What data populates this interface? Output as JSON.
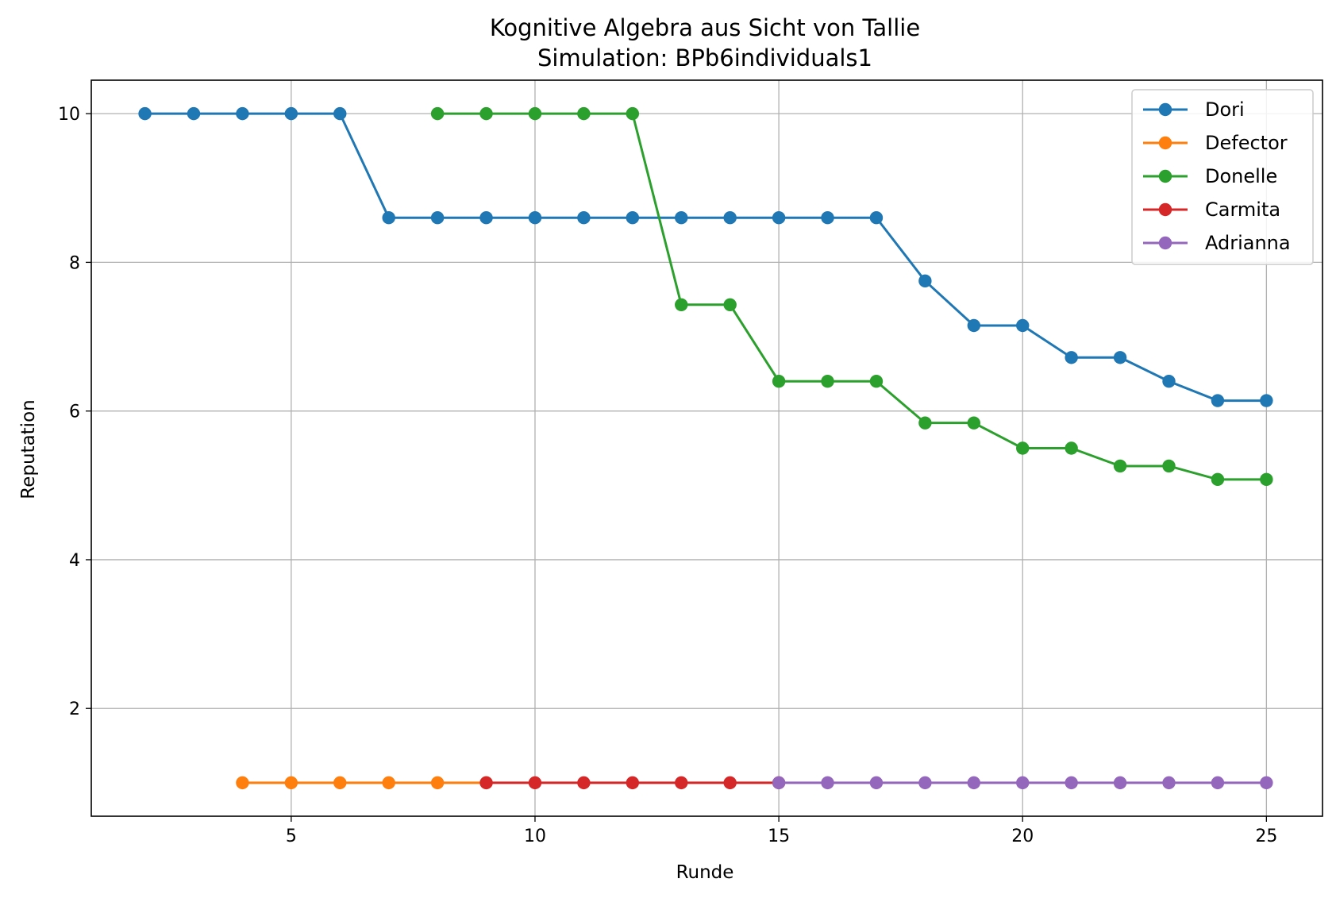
{
  "chart_data": {
    "type": "line",
    "title": "Kognitive Algebra aus Sicht von Tallie",
    "subtitle": "Simulation: BPb6individuals1",
    "xlabel": "Runde",
    "ylabel": "Reputation",
    "xlim": [
      0.9,
      26.15
    ],
    "ylim": [
      0.55,
      10.45
    ],
    "xticks": [
      5,
      10,
      15,
      20,
      25
    ],
    "yticks": [
      2,
      4,
      6,
      8,
      10
    ],
    "grid": true,
    "legend_position": "top-right",
    "series": [
      {
        "name": "Dori",
        "color": "#1f77b4",
        "x": [
          2,
          3,
          4,
          5,
          6,
          7,
          8,
          9,
          10,
          11,
          12,
          13,
          14,
          15,
          16,
          17,
          18,
          19,
          20,
          21,
          22,
          23,
          24,
          25
        ],
        "y": [
          10,
          10,
          10,
          10,
          10,
          8.6,
          8.6,
          8.6,
          8.6,
          8.6,
          8.6,
          8.6,
          8.6,
          8.6,
          8.6,
          8.6,
          7.75,
          7.15,
          7.15,
          6.72,
          6.72,
          6.4,
          6.14,
          6.14
        ]
      },
      {
        "name": "Defector",
        "color": "#ff7f0e",
        "x": [
          4,
          5,
          6,
          7,
          8,
          9
        ],
        "y": [
          1,
          1,
          1,
          1,
          1,
          1
        ]
      },
      {
        "name": "Donelle",
        "color": "#2ca02c",
        "x": [
          8,
          9,
          10,
          11,
          12,
          13,
          14,
          15,
          16,
          17,
          18,
          19,
          20,
          21,
          22,
          23,
          24,
          25
        ],
        "y": [
          10,
          10,
          10,
          10,
          10,
          7.43,
          7.43,
          6.4,
          6.4,
          6.4,
          5.84,
          5.84,
          5.5,
          5.5,
          5.26,
          5.26,
          5.08,
          5.08
        ]
      },
      {
        "name": "Carmita",
        "color": "#d62728",
        "x": [
          9,
          10,
          11,
          12,
          13,
          14,
          15
        ],
        "y": [
          1,
          1,
          1,
          1,
          1,
          1,
          1
        ]
      },
      {
        "name": "Adrianna",
        "color": "#9467bd",
        "x": [
          15,
          16,
          17,
          18,
          19,
          20,
          21,
          22,
          23,
          24,
          25
        ],
        "y": [
          1,
          1,
          1,
          1,
          1,
          1,
          1,
          1,
          1,
          1,
          1
        ]
      }
    ]
  }
}
